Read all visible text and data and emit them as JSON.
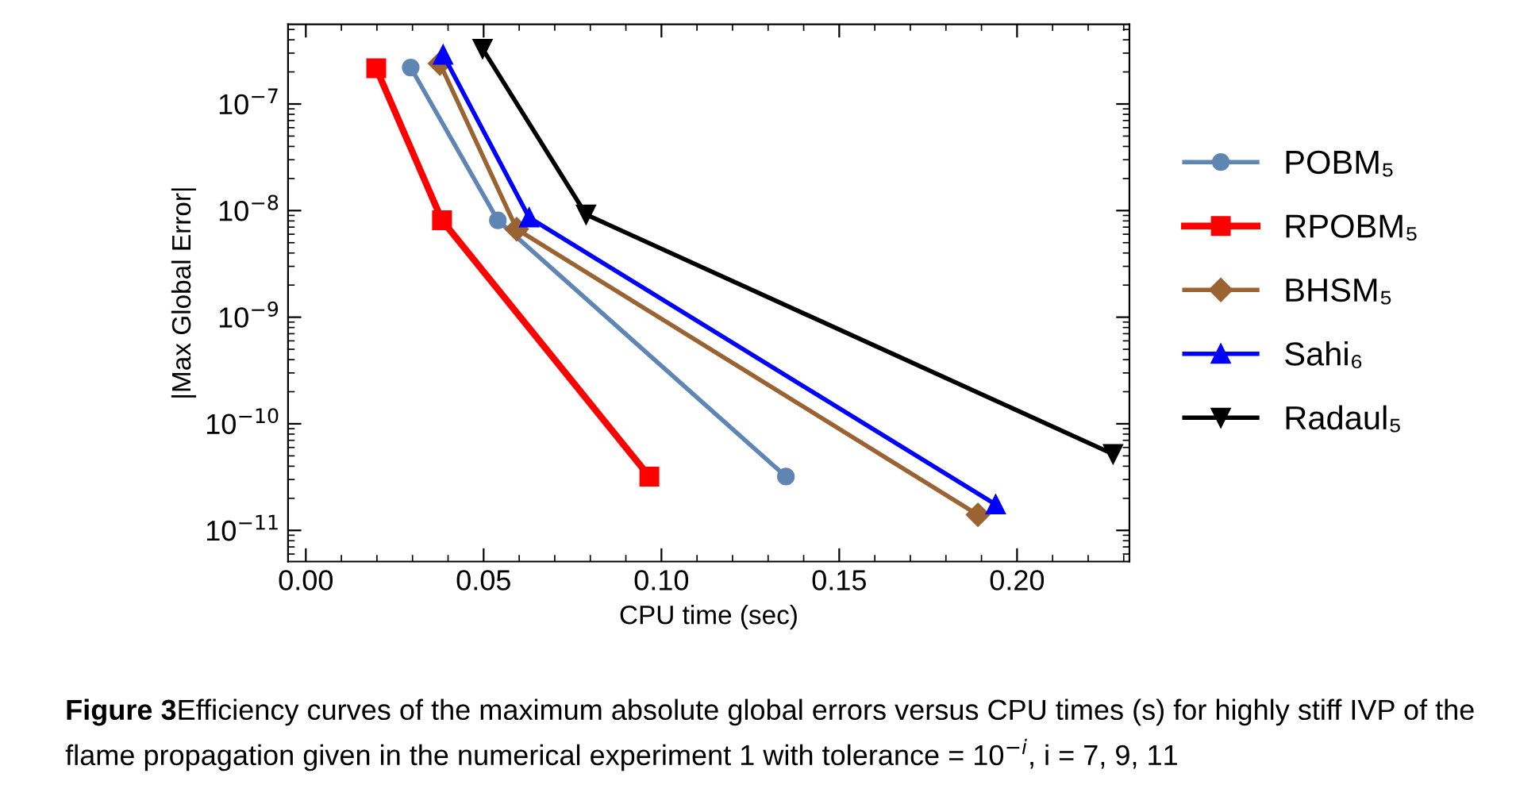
{
  "chart_data": {
    "type": "line",
    "xlabel": "CPU time (sec)",
    "ylabel": "|Max Global Error|",
    "log": "y",
    "grid": false,
    "legend": "right",
    "line_style": "solid",
    "xlim": [
      -0.005,
      0.2316
    ],
    "xticks": [
      {
        "value": 0,
        "label": "0.00"
      },
      0.05,
      {
        "value": 0.1,
        "label": "0.10"
      },
      0.15,
      {
        "value": 0.2,
        "label": "0.20"
      }
    ],
    "ylim": [
      5.1e-12,
      5.6e-07
    ],
    "yticks": [
      {
        "value": 1e-11,
        "label": "10$^{−11}$"
      },
      {
        "value": 1e-10,
        "label": "10$^{−10}$"
      },
      {
        "value": 1e-09,
        "label": "10$^{−9}$"
      },
      {
        "value": 1e-08,
        "label": "10$^{−8}$"
      },
      {
        "value": 1e-07,
        "label": "10$^{−7}$"
      }
    ],
    "series": [
      {
        "name": "POBM₅",
        "color": "#5f85b5",
        "marker": "circle",
        "x": [
          0.0295,
          0.054,
          0.135
        ],
        "values": [
          2.2e-07,
          8.1e-09,
          3.2e-11
        ]
      },
      {
        "name": "RPOBM₅",
        "color": "#ff0000",
        "marker": "square",
        "x": [
          0.0198,
          0.0383,
          0.0966
        ],
        "values": [
          2.16e-07,
          8.1e-09,
          3.2e-11
        ]
      },
      {
        "name": "BHSM₅",
        "color": "#9b6332",
        "marker": "diamond",
        "x": [
          0.0377,
          0.0593,
          0.189
        ],
        "values": [
          2.4e-07,
          6.7e-09,
          1.4e-11
        ]
      },
      {
        "name": "Sahi₆",
        "color": "#0000ff",
        "marker": "triangle",
        "x": [
          0.0386,
          0.0628,
          0.194
        ],
        "values": [
          2.9e-07,
          8.6e-09,
          1.75e-11
        ]
      },
      {
        "name": "Radaul₅",
        "color": "#000000",
        "marker": "triangle_down",
        "x": [
          0.0497,
          0.0788,
          0.227
        ],
        "values": [
          3.3e-07,
          9.2e-09,
          5.2e-11
        ]
      }
    ],
    "annotations": [
      "Figure 3",
      "Efficiency curves of the maximum absolute global errors versus CPU times (s) for highly stiff IVP of the flame propagation given in the numerical experiment 1 with tolerance = 10$^{−i}$, i = 7, 9, 11"
    ]
  }
}
